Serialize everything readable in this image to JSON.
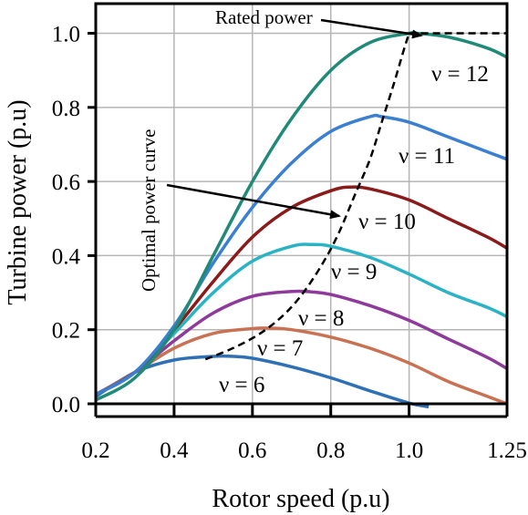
{
  "chart_data": {
    "type": "line",
    "xlabel": "Rotor speed (p.u)",
    "ylabel": "Turbine power (p.u)",
    "xlim": [
      0.2,
      1.25
    ],
    "ylim": [
      0.0,
      1.08
    ],
    "x_ticks": [
      "0.2",
      "0.4",
      "0.6",
      "0.8",
      "1.0",
      "1.25"
    ],
    "y_ticks": [
      "0.0",
      "0.2",
      "0.4",
      "0.6",
      "0.8",
      "1.0"
    ],
    "grid": true,
    "series": [
      {
        "name": "ν = 6",
        "color": "#2f6fb5",
        "x": [
          0.2,
          0.3,
          0.4,
          0.5,
          0.55,
          0.6,
          0.7,
          0.8,
          0.9,
          1.0,
          1.05
        ],
        "y": [
          0.02,
          0.085,
          0.118,
          0.128,
          0.128,
          0.123,
          0.1,
          0.07,
          0.035,
          0.002,
          -0.008
        ]
      },
      {
        "name": "ν = 7",
        "color": "#c87253",
        "x": [
          0.2,
          0.3,
          0.4,
          0.5,
          0.6,
          0.65,
          0.7,
          0.8,
          0.9,
          1.0,
          1.1,
          1.2,
          1.25
        ],
        "y": [
          0.025,
          0.085,
          0.15,
          0.19,
          0.203,
          0.204,
          0.2,
          0.18,
          0.15,
          0.11,
          0.06,
          0.02,
          0.0
        ]
      },
      {
        "name": "ν = 8",
        "color": "#8e3a9a",
        "x": [
          0.2,
          0.3,
          0.4,
          0.5,
          0.6,
          0.7,
          0.75,
          0.8,
          0.9,
          1.0,
          1.1,
          1.2,
          1.25
        ],
        "y": [
          0.025,
          0.085,
          0.17,
          0.245,
          0.29,
          0.303,
          0.302,
          0.295,
          0.265,
          0.225,
          0.175,
          0.125,
          0.095
        ]
      },
      {
        "name": "ν = 9",
        "color": "#2ab3c4",
        "x": [
          0.2,
          0.3,
          0.4,
          0.5,
          0.6,
          0.7,
          0.75,
          0.8,
          0.9,
          1.0,
          1.1,
          1.2,
          1.25
        ],
        "y": [
          0.025,
          0.085,
          0.19,
          0.3,
          0.385,
          0.425,
          0.43,
          0.425,
          0.395,
          0.35,
          0.3,
          0.26,
          0.235
        ]
      },
      {
        "name": "ν = 10",
        "color": "#8b1a1a",
        "x": [
          0.2,
          0.3,
          0.4,
          0.5,
          0.6,
          0.7,
          0.8,
          0.85,
          0.9,
          1.0,
          1.1,
          1.2,
          1.25
        ],
        "y": [
          0.025,
          0.085,
          0.2,
          0.33,
          0.45,
          0.53,
          0.575,
          0.585,
          0.58,
          0.55,
          0.5,
          0.45,
          0.42
        ]
      },
      {
        "name": "ν = 11",
        "color": "#3a7fd0",
        "x": [
          0.2,
          0.3,
          0.4,
          0.5,
          0.6,
          0.7,
          0.8,
          0.9,
          0.93,
          1.0,
          1.1,
          1.2,
          1.25
        ],
        "y": [
          0.025,
          0.085,
          0.21,
          0.38,
          0.53,
          0.65,
          0.735,
          0.775,
          0.775,
          0.76,
          0.72,
          0.68,
          0.66
        ]
      },
      {
        "name": "ν = 12",
        "color": "#1f8a76",
        "x": [
          0.2,
          0.3,
          0.4,
          0.5,
          0.6,
          0.7,
          0.8,
          0.9,
          1.0,
          1.02,
          1.1,
          1.2,
          1.25
        ],
        "y": [
          0.01,
          0.07,
          0.2,
          0.4,
          0.6,
          0.77,
          0.9,
          0.975,
          1.0,
          1.0,
          0.99,
          0.96,
          0.935
        ]
      }
    ],
    "optimal_curve": {
      "x": [
        0.48,
        0.55,
        0.62,
        0.68,
        0.73,
        0.78,
        0.82,
        0.86,
        0.9,
        0.93,
        0.96,
        0.985,
        1.0
      ],
      "y": [
        0.12,
        0.15,
        0.19,
        0.24,
        0.3,
        0.38,
        0.46,
        0.56,
        0.66,
        0.76,
        0.86,
        0.95,
        1.0
      ],
      "color": "#000000",
      "dash": "dashed"
    },
    "rated_line": {
      "x": [
        1.0,
        1.25
      ],
      "y": [
        1.0,
        1.0
      ],
      "color": "#000000",
      "dash": "dashed"
    },
    "annotations": {
      "rated_power": "Rated power",
      "optimal_curve": "Optimal power curve"
    },
    "curve_labels": [
      "ν = 6",
      "ν = 7",
      "ν = 8",
      "ν = 9",
      "ν = 10",
      "ν = 11",
      "ν = 12"
    ]
  }
}
